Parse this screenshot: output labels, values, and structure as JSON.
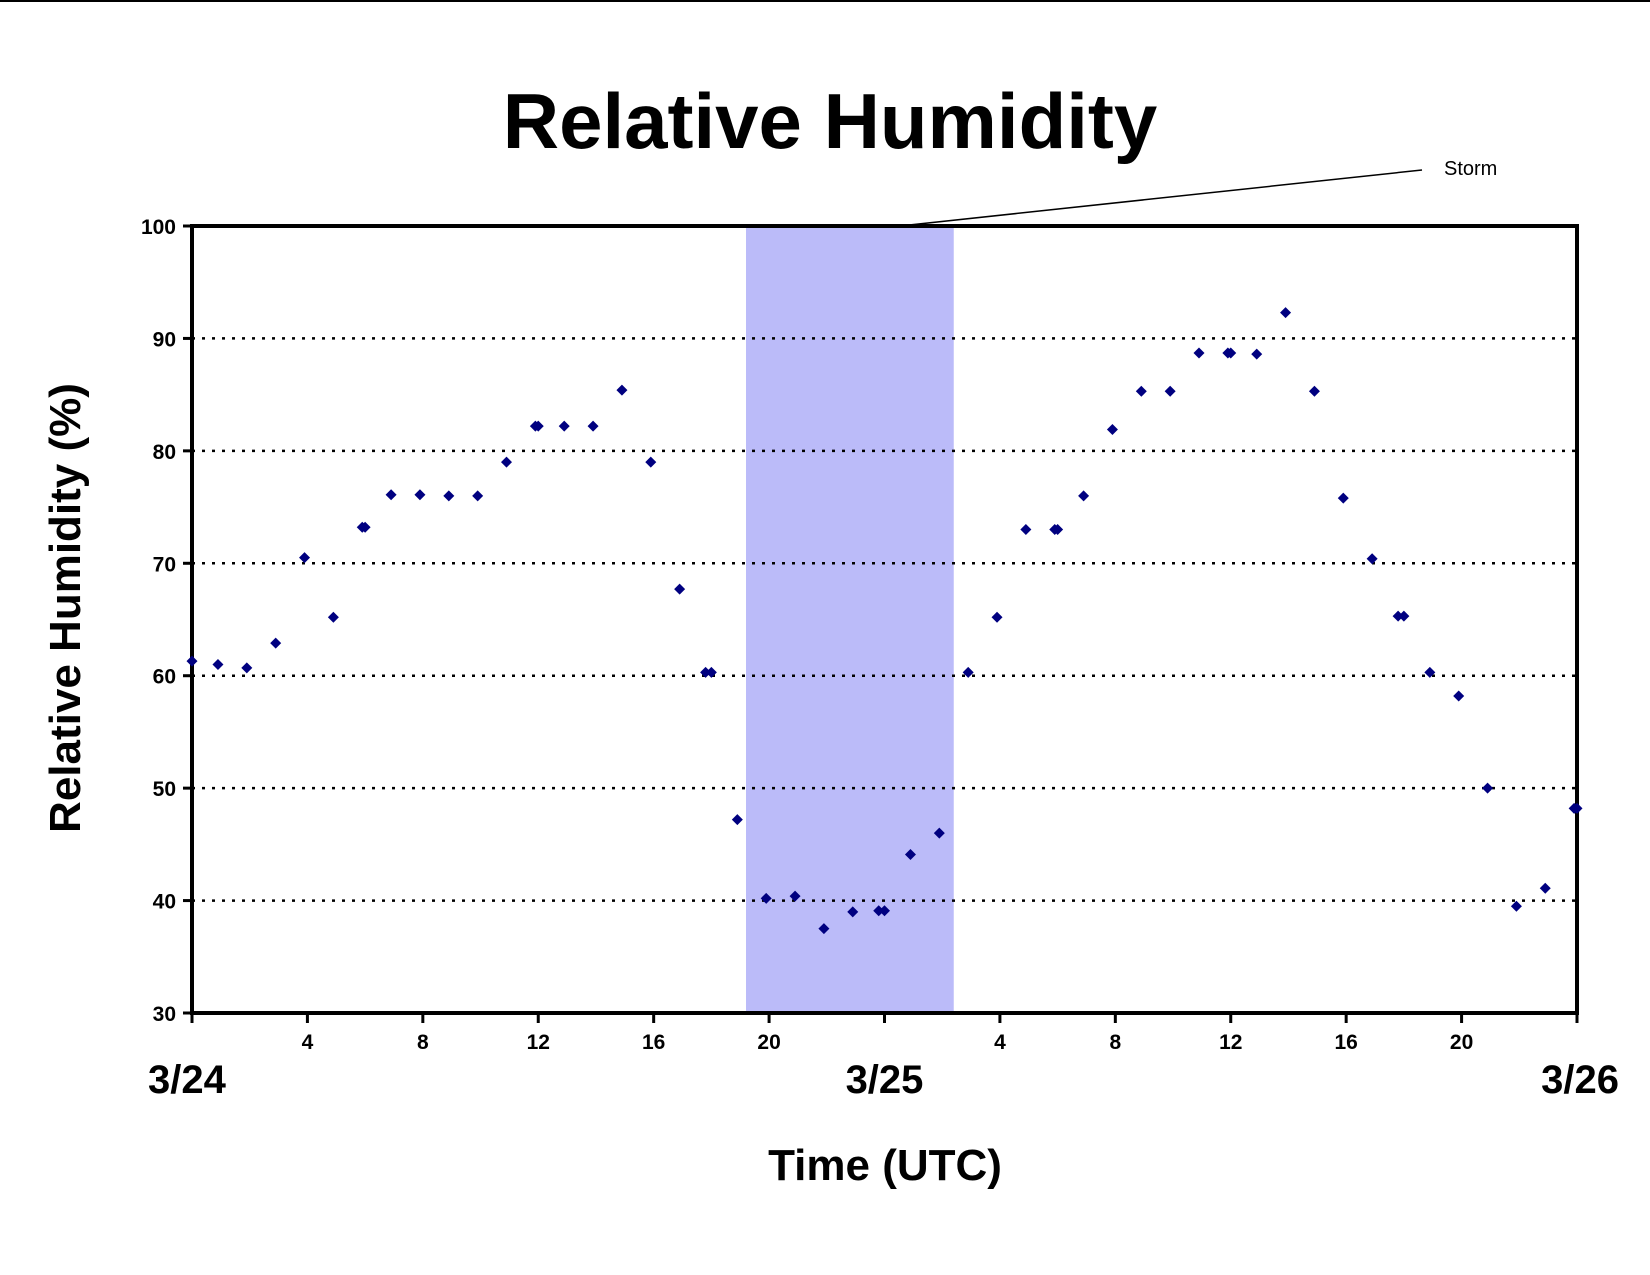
{
  "chart_data": {
    "type": "scatter",
    "title": "Relative Humidity",
    "xlabel": "Time (UTC)",
    "ylabel": "Relative Humidity (%)",
    "xlim": [
      0,
      48
    ],
    "ylim": [
      30,
      100
    ],
    "yticks": [
      30,
      40,
      50,
      60,
      70,
      80,
      90,
      100
    ],
    "grid": "dotted horizontal at 40, 50, 60, 70, 80, 90",
    "hour_ticks": [
      {
        "x": 4,
        "label": "4"
      },
      {
        "x": 8,
        "label": "8"
      },
      {
        "x": 12,
        "label": "12"
      },
      {
        "x": 16,
        "label": "16"
      },
      {
        "x": 20,
        "label": "20"
      },
      {
        "x": 28,
        "label": "4"
      },
      {
        "x": 32,
        "label": "8"
      },
      {
        "x": 36,
        "label": "12"
      },
      {
        "x": 40,
        "label": "16"
      },
      {
        "x": 44,
        "label": "20"
      }
    ],
    "day_labels": [
      {
        "x": 0,
        "label": "3/24"
      },
      {
        "x": 24,
        "label": "3/25"
      },
      {
        "x": 48,
        "label": "3/26"
      }
    ],
    "annotation": {
      "label": "Storm",
      "x_start": 19.2,
      "x_end": 26.4,
      "color": "#bbbbf9"
    },
    "marker_color": "#000080",
    "series": [
      {
        "points": [
          [
            0,
            61.3
          ],
          [
            0.9,
            61.0
          ],
          [
            1.9,
            60.7
          ],
          [
            2.9,
            62.9
          ],
          [
            3.9,
            70.5
          ],
          [
            4.9,
            65.2
          ],
          [
            5.9,
            73.2
          ],
          [
            6.0,
            73.2
          ],
          [
            6.9,
            76.1
          ],
          [
            7.9,
            76.1
          ],
          [
            8.9,
            76.0
          ],
          [
            9.9,
            76.0
          ],
          [
            10.9,
            79.0
          ],
          [
            11.9,
            82.2
          ],
          [
            12.0,
            82.2
          ],
          [
            12.9,
            82.2
          ],
          [
            13.9,
            82.2
          ],
          [
            14.9,
            85.4
          ],
          [
            15.9,
            79.0
          ],
          [
            16.9,
            67.7
          ],
          [
            17.8,
            60.3
          ],
          [
            18.0,
            60.3
          ],
          [
            18.9,
            47.2
          ],
          [
            19.9,
            40.2
          ],
          [
            20.9,
            40.4
          ],
          [
            21.9,
            37.5
          ],
          [
            22.9,
            39.0
          ],
          [
            23.8,
            39.1
          ],
          [
            24.0,
            39.1
          ],
          [
            24.9,
            44.1
          ],
          [
            25.9,
            46.0
          ],
          [
            26.9,
            60.3
          ],
          [
            27.9,
            65.2
          ],
          [
            28.9,
            73.0
          ],
          [
            29.9,
            73.0
          ],
          [
            30.0,
            73.0
          ],
          [
            30.9,
            76.0
          ],
          [
            31.9,
            81.9
          ],
          [
            32.9,
            85.3
          ],
          [
            33.9,
            85.3
          ],
          [
            34.9,
            88.7
          ],
          [
            35.9,
            88.7
          ],
          [
            36.0,
            88.7
          ],
          [
            36.9,
            88.6
          ],
          [
            37.9,
            92.3
          ],
          [
            38.9,
            85.3
          ],
          [
            39.9,
            75.8
          ],
          [
            40.9,
            70.4
          ],
          [
            41.8,
            65.3
          ],
          [
            42.0,
            65.3
          ],
          [
            42.9,
            60.3
          ],
          [
            43.9,
            58.2
          ],
          [
            44.9,
            50.0
          ],
          [
            45.9,
            39.5
          ],
          [
            46.9,
            41.1
          ],
          [
            47.9,
            48.2
          ],
          [
            48.0,
            48.2
          ]
        ]
      }
    ]
  }
}
